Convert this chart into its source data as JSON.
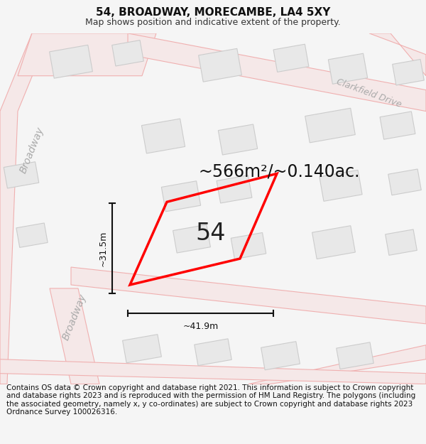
{
  "title": "54, BROADWAY, MORECAMBE, LA4 5XY",
  "subtitle": "Map shows position and indicative extent of the property.",
  "footer": "Contains OS data © Crown copyright and database right 2021. This information is subject to Crown copyright and database rights 2023 and is reproduced with the permission of HM Land Registry. The polygons (including the associated geometry, namely x, y co-ordinates) are subject to Crown copyright and database rights 2023 Ordnance Survey 100026316.",
  "area_label": "~566m²/~0.140ac.",
  "property_number": "54",
  "dim_width": "~41.9m",
  "dim_height": "~31.5m",
  "street_broadway_upper": "Broadway",
  "street_broadway_lower": "Broadway",
  "street_clarkfield": "Clarkfield Drive",
  "bg_color": "#f5f5f5",
  "map_bg": "#ffffff",
  "road_fill": "#f5e8e8",
  "building_fill": "#e8e8e8",
  "road_line": "#f0b0b0",
  "building_line": "#cccccc",
  "highlight_line": "#ff0000",
  "dim_color": "#111111",
  "street_color": "#aaaaaa",
  "title_fontsize": 11,
  "subtitle_fontsize": 9,
  "footer_fontsize": 7.5,
  "area_fontsize": 17,
  "number_fontsize": 24,
  "street_fontsize": 10
}
